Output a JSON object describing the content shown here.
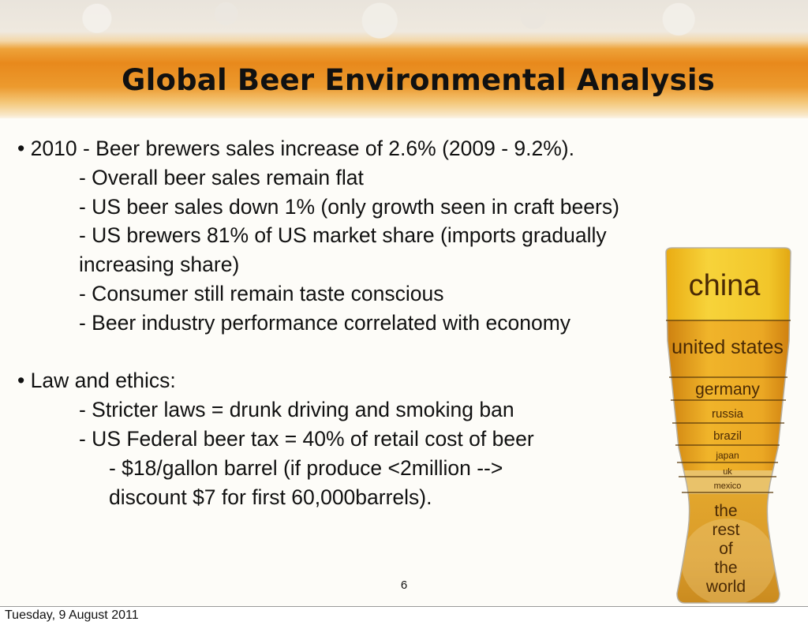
{
  "slide": {
    "title": "Global Beer Environmental Analysis",
    "bullets": [
      {
        "level": 1,
        "text": "• 2010 - Beer brewers sales increase of 2.6% (2009 - 9.2%)."
      },
      {
        "level": 2,
        "text": "- Overall beer sales remain flat"
      },
      {
        "level": 2,
        "text": "- US beer sales down 1% (only growth seen in craft beers)"
      },
      {
        "level": 2,
        "text": "- US brewers 81% of US market share (imports gradually"
      },
      {
        "level": 2,
        "text": "increasing share)"
      },
      {
        "level": 2,
        "text": "- Consumer still remain taste conscious"
      },
      {
        "level": 2,
        "text": "- Beer industry performance correlated with economy"
      },
      {
        "level": 1,
        "text": ""
      },
      {
        "level": 1,
        "text": "• Law and ethics:"
      },
      {
        "level": 2,
        "text": "- Stricter laws = drunk driving and smoking ban"
      },
      {
        "level": 2,
        "text": "- US Federal beer tax = 40% of retail cost of beer"
      },
      {
        "level": 3,
        "text": "- $18/gallon barrel (if produce <2million -->"
      },
      {
        "level": 3,
        "text": "discount $7 for first 60,000barrels)."
      }
    ],
    "page_number": "6",
    "footer_date": "Tuesday, 9 August 2011"
  },
  "beer_glass": {
    "segments": [
      "china",
      "united states",
      "germany",
      "russia",
      "brazil",
      "japan",
      "uk",
      "mexico",
      "the",
      "rest",
      "of",
      "the",
      "world"
    ]
  },
  "colors": {
    "banner_orange": "#e8891c",
    "glass_yellow": "#f2c62a",
    "glass_amber": "#d98a12",
    "text": "#111111"
  }
}
